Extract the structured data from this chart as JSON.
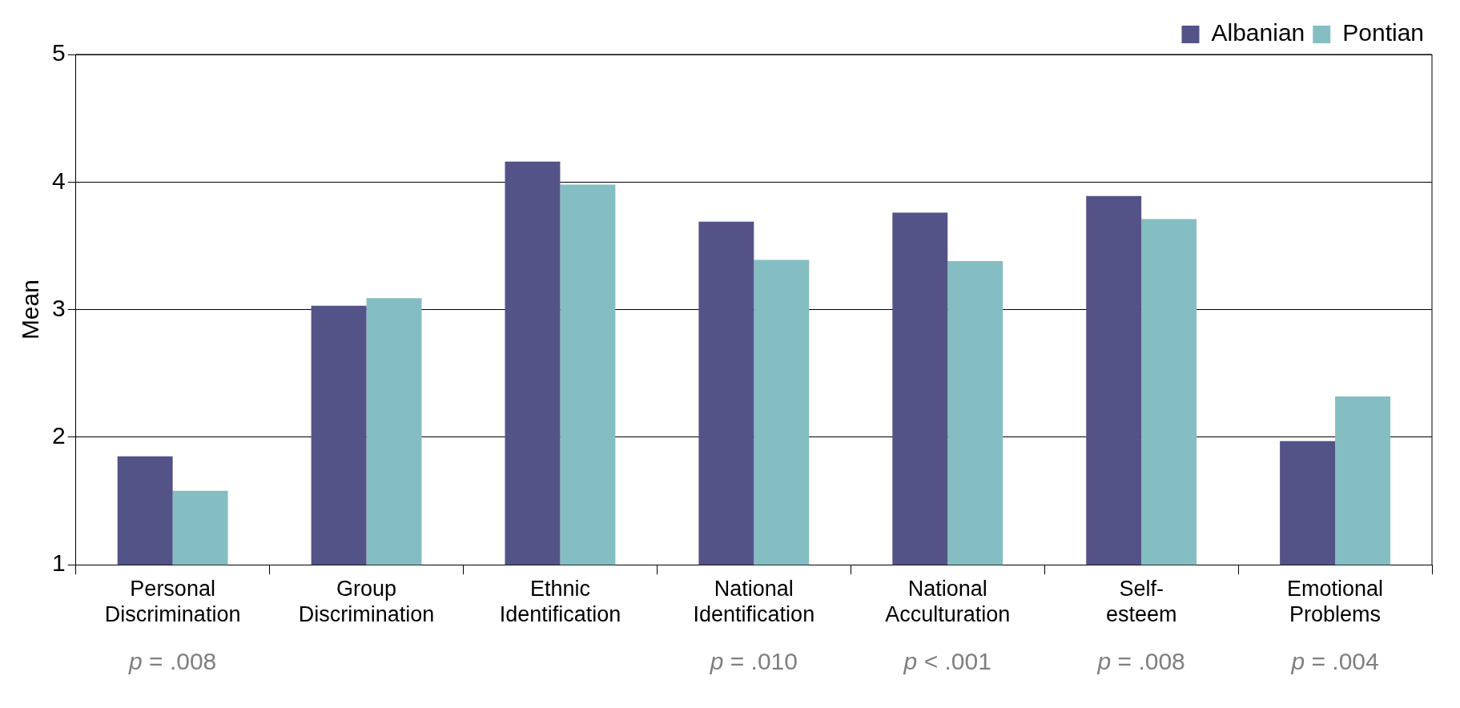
{
  "chart_data": {
    "type": "bar",
    "ylabel": "Mean",
    "categories": [
      "Personal Discrimination",
      "Group Discrimination",
      "Ethnic Identification",
      "National Identification",
      "National Acculturation",
      "Self-esteem",
      "Emotional Problems"
    ],
    "series": [
      {
        "name": "Albanian",
        "color": "#545387",
        "values": [
          1.85,
          3.03,
          4.16,
          3.69,
          3.76,
          3.89,
          1.97
        ]
      },
      {
        "name": "Pontian",
        "color": "#85bec2",
        "values": [
          1.58,
          3.09,
          3.98,
          3.39,
          3.38,
          3.71,
          2.32
        ]
      }
    ],
    "ylim": [
      1,
      5
    ],
    "yticks": [
      1,
      2,
      3,
      4,
      5
    ],
    "grid": "y",
    "legend": "top right",
    "annotations": [
      {
        "text": "p = .008",
        "x": "Personal Discrimination"
      },
      {
        "text": "p = .010",
        "x": "National Identification"
      },
      {
        "text": "p < .001",
        "x": "National Acculturation"
      },
      {
        "text": "p = .008",
        "x": "Self-esteem"
      },
      {
        "text": "p = .004",
        "x": "Emotional Problems"
      }
    ]
  }
}
